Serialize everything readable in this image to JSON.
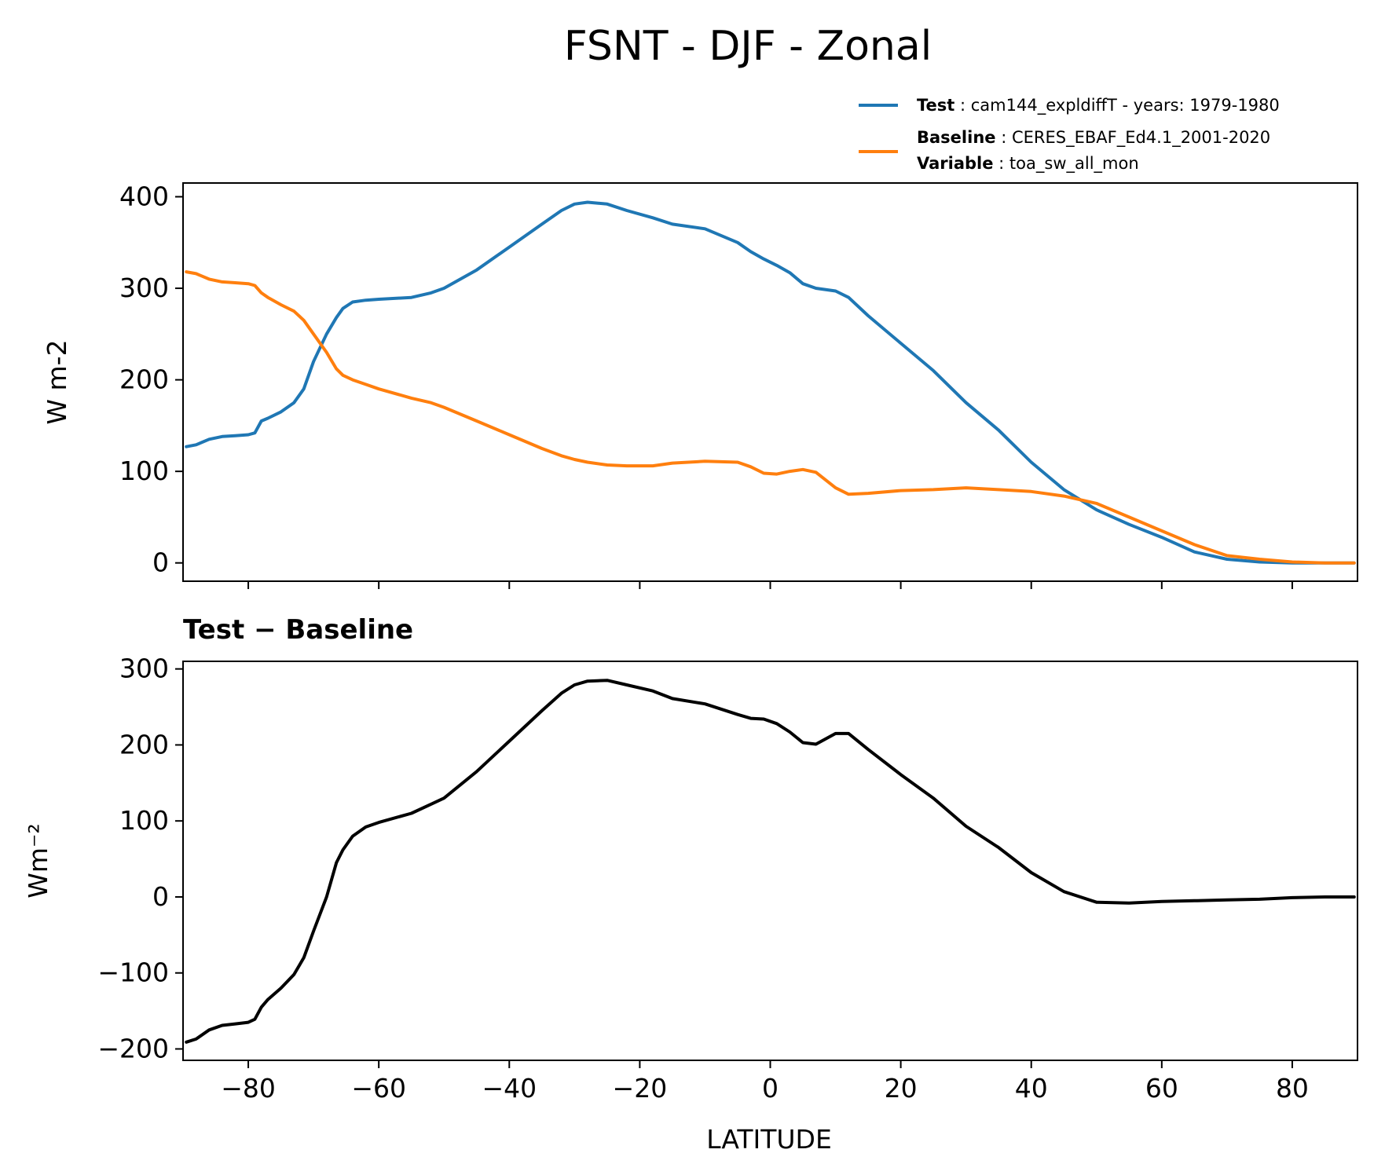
{
  "title": "FSNT - DJF - Zonal",
  "legend": {
    "test_key": "Test",
    "test_value": ": cam144_expldiffT - years: 1979-1980",
    "baseline_key": "Baseline",
    "baseline_value": ": CERES_EBAF_Ed4.1_2001-2020",
    "variable_key": "Variable",
    "variable_value": ": toa_sw_all_mon"
  },
  "colors": {
    "test": "#1f77b4",
    "baseline": "#ff7f0e",
    "diff": "#000000"
  },
  "chart_data": [
    {
      "type": "line",
      "title": "",
      "xlabel": "",
      "ylabel": "W m-2",
      "xlim": [
        -90,
        90
      ],
      "ylim": [
        -20,
        415
      ],
      "xticks": [
        -80,
        -60,
        -40,
        -20,
        0,
        20,
        40,
        60,
        80
      ],
      "yticks": [
        0,
        100,
        200,
        300,
        400
      ],
      "ytick_labels": [
        "0",
        "100",
        "200",
        "300",
        "400"
      ],
      "legend_position": "above, right",
      "x": [
        -89.5,
        -88,
        -86,
        -84,
        -82,
        -80,
        -79,
        -78,
        -77,
        -75,
        -73,
        -71.5,
        -70,
        -68,
        -66.5,
        -65.5,
        -64,
        -62,
        -60,
        -55,
        -52,
        -50,
        -45,
        -40,
        -35,
        -32,
        -30,
        -28,
        -25,
        -22,
        -18,
        -15,
        -10,
        -5,
        -3,
        -1,
        1,
        3,
        5,
        7,
        10,
        12,
        15,
        20,
        25,
        30,
        35,
        40,
        45,
        50,
        55,
        60,
        65,
        70,
        75,
        80,
        85,
        89.5
      ],
      "series": [
        {
          "name": "Test",
          "color": "#1f77b4",
          "values": [
            127,
            129,
            135,
            138,
            139,
            140,
            142,
            155,
            158,
            165,
            175,
            190,
            220,
            250,
            268,
            278,
            285,
            287,
            288,
            290,
            295,
            300,
            320,
            345,
            370,
            385,
            392,
            394,
            392,
            385,
            377,
            370,
            365,
            350,
            340,
            332,
            325,
            317,
            305,
            300,
            297,
            290,
            270,
            240,
            210,
            175,
            145,
            110,
            80,
            58,
            42,
            28,
            12,
            4,
            1,
            0,
            0,
            0
          ]
        },
        {
          "name": "Baseline",
          "color": "#ff7f0e",
          "values": [
            318,
            316,
            310,
            307,
            306,
            305,
            303,
            295,
            290,
            282,
            275,
            265,
            250,
            230,
            212,
            205,
            200,
            195,
            190,
            180,
            175,
            170,
            155,
            140,
            125,
            117,
            113,
            110,
            107,
            106,
            106,
            109,
            111,
            110,
            105,
            98,
            97,
            100,
            102,
            99,
            82,
            75,
            76,
            79,
            80,
            82,
            80,
            78,
            73,
            65,
            50,
            35,
            20,
            8,
            4,
            1,
            0,
            0
          ]
        }
      ]
    },
    {
      "type": "line",
      "title": "Test − Baseline",
      "xlabel": "LATITUDE",
      "ylabel": "Wm⁻²",
      "xlim": [
        -90,
        90
      ],
      "ylim": [
        -215,
        310
      ],
      "xticks": [
        -80,
        -60,
        -40,
        -20,
        0,
        20,
        40,
        60,
        80
      ],
      "xtick_labels": [
        "−80",
        "−60",
        "−40",
        "−20",
        "0",
        "20",
        "40",
        "60",
        "80"
      ],
      "yticks": [
        -200,
        -100,
        0,
        100,
        200,
        300
      ],
      "ytick_labels": [
        "−200",
        "−100",
        "0",
        "100",
        "200",
        "300"
      ],
      "x": [
        -89.5,
        -88,
        -86,
        -84,
        -82,
        -80,
        -79,
        -78,
        -77,
        -75,
        -73,
        -71.5,
        -70,
        -68,
        -66.5,
        -65.5,
        -64,
        -62,
        -60,
        -55,
        -52,
        -50,
        -45,
        -40,
        -35,
        -32,
        -30,
        -28,
        -25,
        -22,
        -18,
        -15,
        -10,
        -5,
        -3,
        -1,
        1,
        3,
        5,
        7,
        10,
        12,
        15,
        20,
        25,
        30,
        35,
        40,
        45,
        50,
        55,
        60,
        65,
        70,
        75,
        80,
        85,
        89.5
      ],
      "series": [
        {
          "name": "Test − Baseline",
          "color": "#000000",
          "values": [
            -191,
            -187,
            -175,
            -169,
            -167,
            -165,
            -161,
            -145,
            -135,
            -120,
            -102,
            -80,
            -45,
            0,
            45,
            62,
            80,
            92,
            98,
            110,
            122,
            130,
            165,
            205,
            245,
            268,
            279,
            284,
            285,
            279,
            271,
            261,
            254,
            240,
            235,
            234,
            228,
            217,
            203,
            201,
            215,
            215,
            194,
            161,
            130,
            93,
            65,
            32,
            7,
            -7,
            -8,
            -6,
            -5,
            -4,
            -3,
            -1,
            0,
            0
          ]
        }
      ]
    }
  ]
}
